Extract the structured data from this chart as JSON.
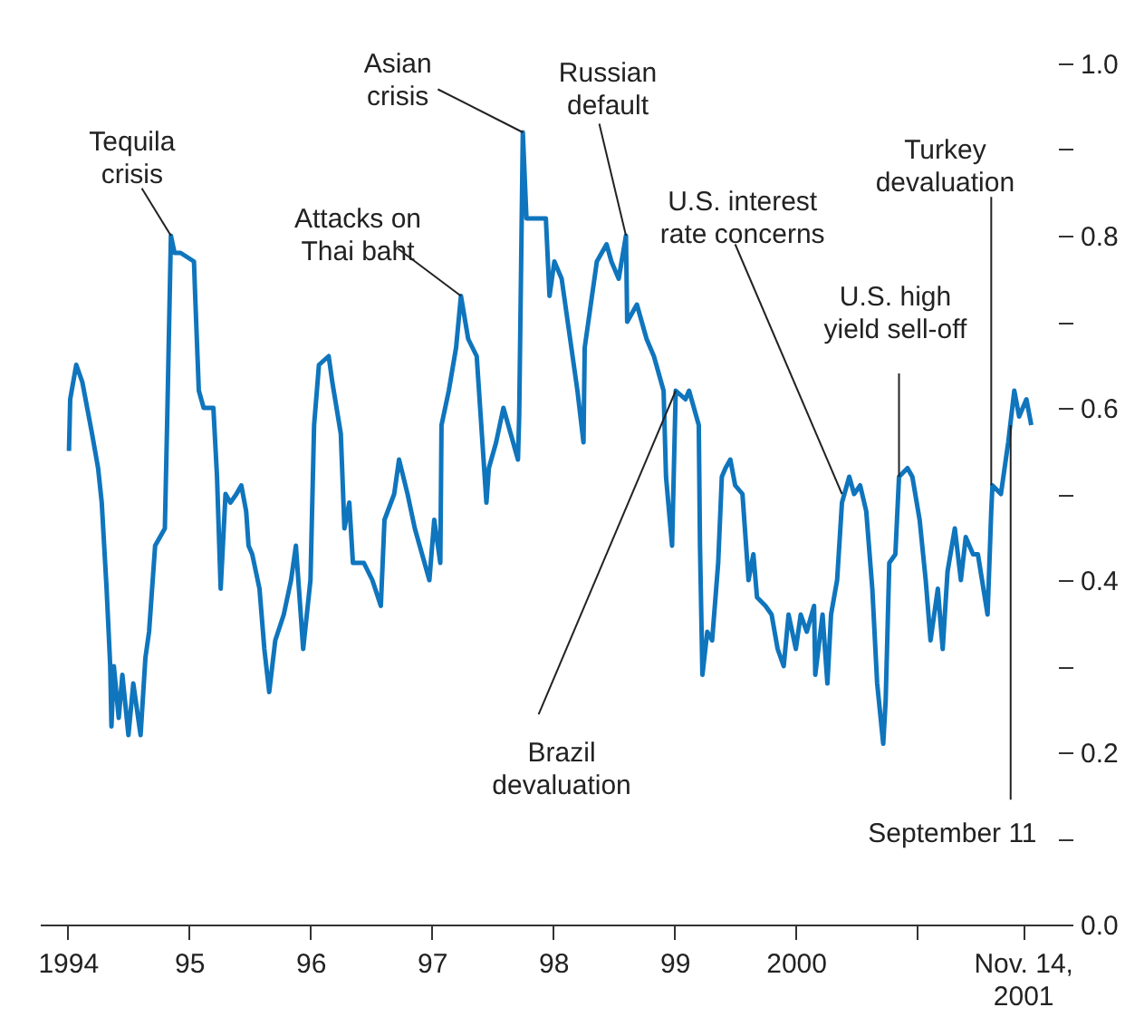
{
  "chart_data": {
    "type": "line",
    "x": [
      1994.01,
      1994.02,
      1994.07,
      1994.12,
      1994.16,
      1994.2,
      1994.25,
      1994.28,
      1994.32,
      1994.35,
      1994.36,
      1994.38,
      1994.42,
      1994.45,
      1994.5,
      1994.54,
      1994.6,
      1994.64,
      1994.67,
      1994.72,
      1994.76,
      1994.8,
      1994.82,
      1994.85,
      1994.88,
      1994.93,
      1995.04,
      1995.05,
      1995.08,
      1995.12,
      1995.2,
      1995.23,
      1995.26,
      1995.3,
      1995.34,
      1995.39,
      1995.43,
      1995.47,
      1995.49,
      1995.52,
      1995.58,
      1995.62,
      1995.66,
      1995.71,
      1995.78,
      1995.84,
      1995.88,
      1995.94,
      1996.0,
      1996.03,
      1996.07,
      1996.15,
      1996.18,
      1996.25,
      1996.28,
      1996.32,
      1996.35,
      1996.44,
      1996.51,
      1996.58,
      1996.61,
      1996.69,
      1996.73,
      1996.8,
      1996.86,
      1996.92,
      1996.98,
      1997.02,
      1997.07,
      1997.08,
      1997.14,
      1997.2,
      1997.24,
      1997.3,
      1997.37,
      1997.45,
      1997.47,
      1997.53,
      1997.59,
      1997.65,
      1997.71,
      1997.72,
      1997.75,
      1997.78,
      1997.85,
      1997.94,
      1997.97,
      1998.01,
      1998.07,
      1998.15,
      1998.2,
      1998.25,
      1998.26,
      1998.36,
      1998.44,
      1998.48,
      1998.54,
      1998.6,
      1998.61,
      1998.69,
      1998.77,
      1998.83,
      1998.91,
      1998.93,
      1998.98,
      1999.01,
      1999.09,
      1999.12,
      1999.2,
      1999.21,
      1999.23,
      1999.27,
      1999.31,
      1999.36,
      1999.39,
      1999.42,
      1999.46,
      1999.5,
      1999.56,
      1999.58,
      1999.61,
      1999.65,
      1999.68,
      1999.75,
      1999.8,
      1999.85,
      1999.9,
      1999.94,
      2000.0,
      2000.04,
      2000.09,
      2000.15,
      2000.16,
      2000.22,
      2000.26,
      2000.29,
      2000.34,
      2000.38,
      2000.44,
      2000.48,
      2000.53,
      2000.58,
      2000.63,
      2000.67,
      2000.72,
      2000.74,
      2000.77,
      2000.82,
      2000.85,
      2000.92,
      2000.96,
      2001.02,
      2001.07,
      2001.11,
      2001.17,
      2001.21,
      2001.25,
      2001.31,
      2001.36,
      2001.4,
      2001.46,
      2001.5,
      2001.58,
      2001.61,
      2001.62,
      2001.69,
      2001.75,
      2001.8,
      2001.84,
      2001.9,
      2001.94
    ],
    "series": [
      {
        "color": "#0f75bd",
        "values": [
          0.55,
          0.61,
          0.65,
          0.63,
          0.6,
          0.57,
          0.53,
          0.49,
          0.39,
          0.3,
          0.23,
          0.3,
          0.24,
          0.29,
          0.22,
          0.28,
          0.22,
          0.31,
          0.34,
          0.44,
          0.45,
          0.46,
          0.59,
          0.8,
          0.78,
          0.78,
          0.77,
          0.73,
          0.62,
          0.6,
          0.6,
          0.52,
          0.39,
          0.5,
          0.49,
          0.5,
          0.51,
          0.48,
          0.44,
          0.43,
          0.39,
          0.32,
          0.27,
          0.33,
          0.36,
          0.4,
          0.44,
          0.32,
          0.4,
          0.58,
          0.65,
          0.66,
          0.63,
          0.57,
          0.46,
          0.49,
          0.42,
          0.42,
          0.4,
          0.37,
          0.47,
          0.5,
          0.54,
          0.5,
          0.46,
          0.43,
          0.4,
          0.47,
          0.42,
          0.58,
          0.62,
          0.67,
          0.73,
          0.68,
          0.66,
          0.49,
          0.53,
          0.56,
          0.6,
          0.57,
          0.54,
          0.59,
          0.92,
          0.82,
          0.82,
          0.82,
          0.73,
          0.77,
          0.75,
          0.67,
          0.62,
          0.56,
          0.67,
          0.77,
          0.79,
          0.77,
          0.75,
          0.8,
          0.7,
          0.72,
          0.68,
          0.66,
          0.62,
          0.52,
          0.44,
          0.62,
          0.61,
          0.62,
          0.58,
          0.44,
          0.29,
          0.34,
          0.33,
          0.42,
          0.52,
          0.53,
          0.54,
          0.51,
          0.5,
          0.46,
          0.4,
          0.43,
          0.38,
          0.37,
          0.36,
          0.32,
          0.3,
          0.36,
          0.32,
          0.36,
          0.34,
          0.37,
          0.29,
          0.36,
          0.28,
          0.36,
          0.4,
          0.49,
          0.52,
          0.5,
          0.51,
          0.48,
          0.39,
          0.28,
          0.21,
          0.26,
          0.42,
          0.43,
          0.52,
          0.53,
          0.52,
          0.47,
          0.4,
          0.33,
          0.39,
          0.32,
          0.41,
          0.46,
          0.4,
          0.45,
          0.43,
          0.43,
          0.36,
          0.48,
          0.51,
          0.5,
          0.56,
          0.62,
          0.59,
          0.61,
          0.58
        ]
      }
    ],
    "xlim": [
      1993.77,
      2002.16
    ],
    "xticks": [
      1994,
      {
        "value": 1995,
        "label": "95"
      },
      {
        "value": 1996,
        "label": "96"
      },
      {
        "value": 1997,
        "label": "97"
      },
      {
        "value": 1998,
        "label": "98"
      },
      {
        "value": 1999,
        "label": "99"
      },
      2000,
      {
        "value": 2001,
        "label": null
      },
      {
        "value": 2001.87,
        "label": "Nov. 14,\n2001"
      }
    ],
    "ylim": [
      0,
      1
    ],
    "yticks": [
      {
        "value": 0,
        "label": "0.0"
      },
      {
        "value": 0.1,
        "label": null
      },
      {
        "value": 0.2,
        "label": "0.2"
      },
      {
        "value": 0.3,
        "label": null
      },
      {
        "value": 0.4,
        "label": "0.4"
      },
      {
        "value": 0.5,
        "label": null
      },
      {
        "value": 0.6,
        "label": "0.6"
      },
      {
        "value": 0.7,
        "label": null
      },
      {
        "value": 0.8,
        "label": "0.8"
      },
      {
        "value": 0.9,
        "label": null
      },
      {
        "value": 1,
        "label": "1.0"
      }
    ],
    "grid": false,
    "annotations": [
      {
        "text": "Tequila\ncrisis",
        "x": 1994.85,
        "y": 0.8
      },
      {
        "text": "Attacks on\nThai baht",
        "x": 1997.24,
        "y": 0.73
      },
      {
        "text": "Asian\ncrisis",
        "x": 1997.75,
        "y": 0.92
      },
      {
        "text": "Russian\ndefault",
        "x": 1998.6,
        "y": 0.8
      },
      {
        "text": "Brazil\ndevaluation",
        "x": 1999.01,
        "y": 0.62
      },
      {
        "text": "U.S. interest\nrate concerns",
        "x": 2000.38,
        "y": 0.5
      },
      {
        "text": "U.S. high\nyield sell-off",
        "x": 2000.85,
        "y": 0.52
      },
      {
        "text": "Turkey\ndevaluation",
        "x": 2001.61,
        "y": 0.51
      },
      {
        "text": "September 11",
        "x": 2001.77,
        "y": 0.58
      }
    ]
  }
}
